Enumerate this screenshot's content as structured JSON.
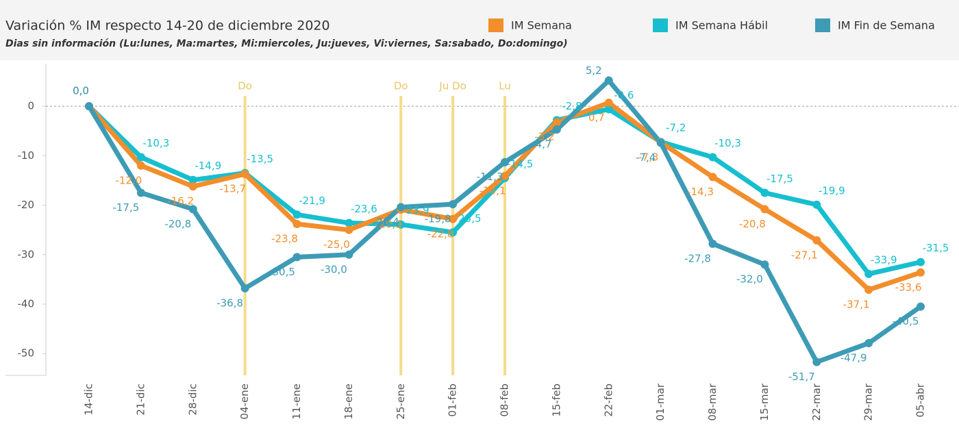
{
  "chart_data": {
    "type": "line",
    "title": "Variación % IM respecto 14-20 de diciembre 2020",
    "subtitle": "Dias sin información (Lu:lunes, Ma:martes, Mi:miercoles, Ju:jueves, Vi:viernes, Sa:sabado, Do:domingo)",
    "categories": [
      "14-dic",
      "21-dic",
      "28-dic",
      "04-ene",
      "11-ene",
      "18-ene",
      "25-ene",
      "01-feb",
      "08-feb",
      "15-feb",
      "22-feb",
      "01-mar",
      "08-mar",
      "15-mar",
      "22-mar",
      "29-mar",
      "05-abr"
    ],
    "series": [
      {
        "name": "IM Semana",
        "color": "#f28e2b",
        "values": [
          0.0,
          -12.0,
          -16.2,
          -13.7,
          -23.8,
          -25.0,
          -20.9,
          -22.8,
          -14.1,
          -3.2,
          0.7,
          -7.3,
          -14.3,
          -20.8,
          -27.1,
          -37.1,
          -33.6
        ],
        "value_labels": [
          "0,0",
          "-12,0",
          "-16,2",
          "-13,7",
          "-23,8",
          "-25,0",
          "-20,9",
          "-22,8",
          "-14,1",
          "-3,2",
          "0,7",
          "-7,3",
          "-14,3",
          "-20,8",
          "-27,1",
          "-37,1",
          "-33,6"
        ]
      },
      {
        "name": "IM Semana Hábil",
        "color": "#17becf",
        "values": [
          0.0,
          -10.3,
          -14.9,
          -13.5,
          -21.9,
          -23.6,
          -23.9,
          -25.5,
          -14.5,
          -2.8,
          -0.6,
          -7.2,
          -10.3,
          -17.5,
          -19.9,
          -33.9,
          -31.5
        ],
        "value_labels": [
          "0,0",
          "-10,3",
          "-14,9",
          "-13,5",
          "-21,9",
          "-23,6",
          "-23,9",
          "-25,5",
          "-14,5",
          "-2,8",
          "-0,6",
          "-7,2",
          "-10,3",
          "-17,5",
          "-19,9",
          "-33,9",
          "-31,5"
        ]
      },
      {
        "name": "IM Fin de Semana",
        "color": "#3d9bb5",
        "values": [
          0.0,
          -17.5,
          -20.8,
          -36.8,
          -30.5,
          -30.0,
          -20.4,
          -19.8,
          -11.3,
          -4.7,
          5.2,
          -7.4,
          -27.8,
          -32.0,
          -51.7,
          -47.9,
          -40.5
        ],
        "value_labels": [
          "0,0",
          "-17,5",
          "-20,8",
          "-36,8",
          "-30,5",
          "-30,0",
          "-20,4",
          "-19,8",
          "-11,3",
          "-4,7",
          "5,2",
          "-7,4",
          "-27,8",
          "-32,0",
          "-51,7",
          "-47,9",
          "-40,5"
        ]
      }
    ],
    "annotations": [
      {
        "category": 3,
        "text": "Do"
      },
      {
        "category": 6,
        "text": "Do"
      },
      {
        "category": 7,
        "text": "Ju Do"
      },
      {
        "category": 8,
        "text": "Lu"
      }
    ],
    "ylim": [
      -54.4,
      8.6
    ],
    "yticks": [
      0,
      -10,
      -20,
      -30,
      -40,
      -50
    ]
  }
}
